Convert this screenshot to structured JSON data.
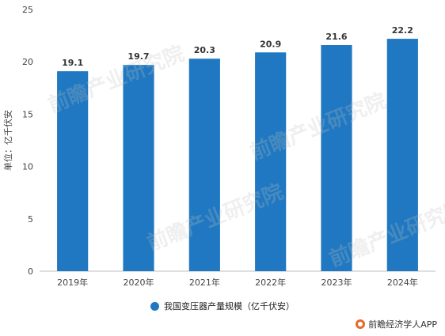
{
  "chart_data": {
    "type": "bar",
    "categories": [
      "2019年",
      "2020年",
      "2021年",
      "2022年",
      "2023年",
      "2024年"
    ],
    "series": [
      {
        "name": "我国变压器产量规模（亿千伏安）",
        "values": [
          19.1,
          19.7,
          20.3,
          20.9,
          21.6,
          22.2
        ]
      }
    ],
    "data_labels": [
      "19.1",
      "19.7",
      "20.3",
      "20.9",
      "21.6",
      "22.2"
    ],
    "ylabel": "单位：亿千伏安",
    "xlabel": "",
    "ylim": [
      0,
      25
    ],
    "yticks": [
      0,
      5,
      10,
      15,
      20,
      25
    ],
    "grid": false,
    "legend_position": "bottom",
    "bar_color": "#1f78c1"
  },
  "watermark_text": "前瞻产业研究院",
  "footer": {
    "icon": "qianzhan-logo-icon",
    "text": "前瞻经济学人APP"
  }
}
